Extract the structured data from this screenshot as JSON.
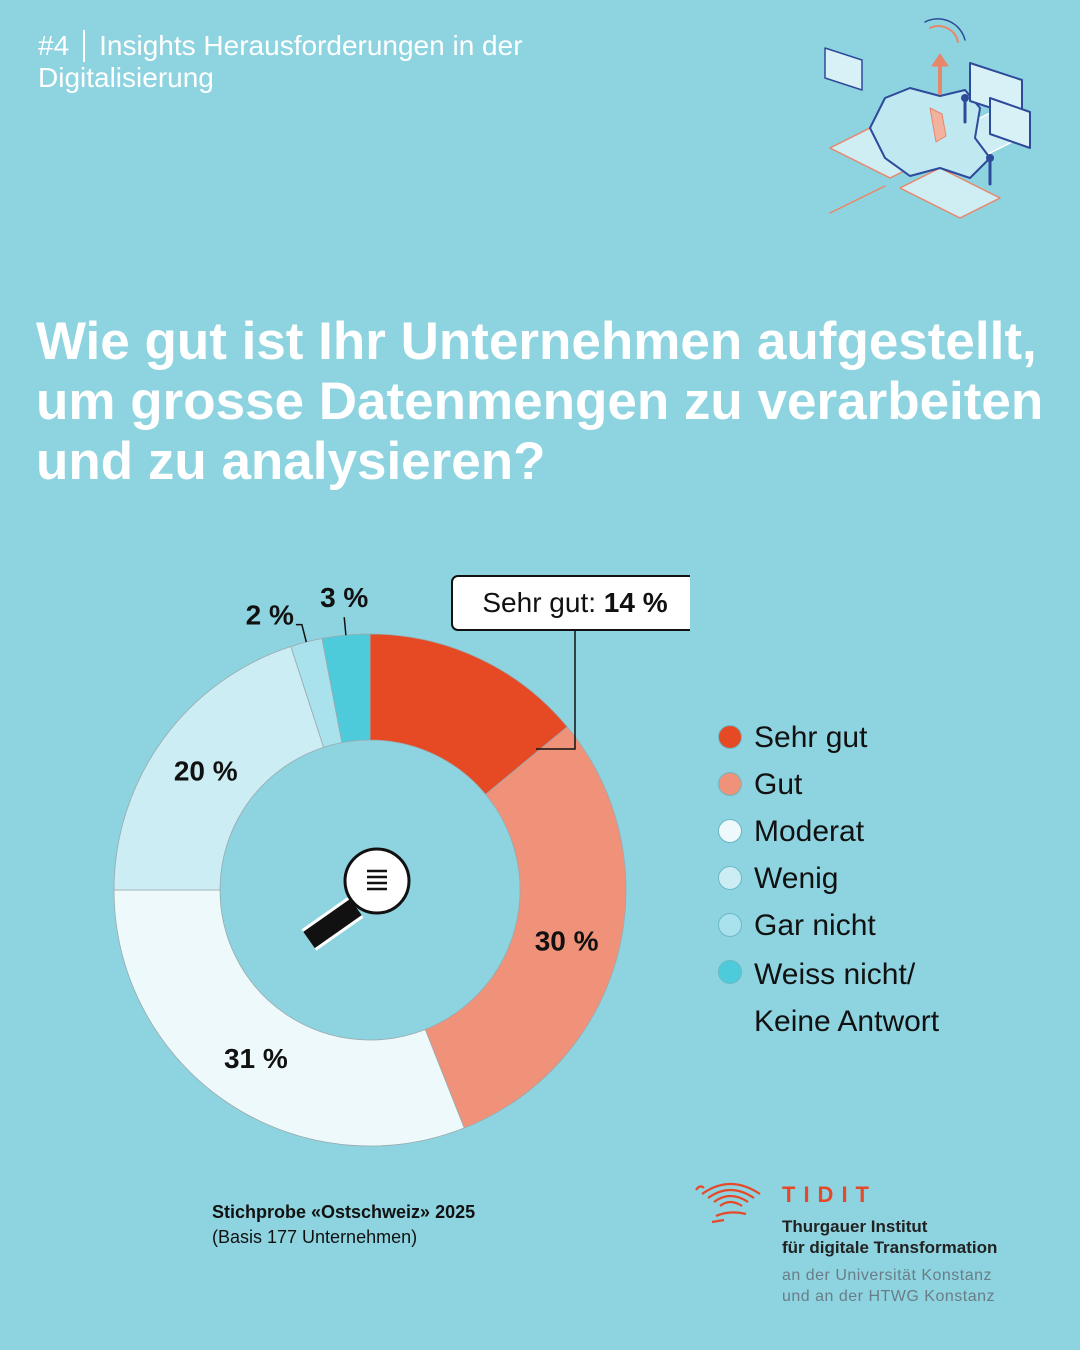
{
  "header": {
    "number": "#4",
    "line1": "Insights Herausforderungen in der",
    "line2": "Digitalisierung"
  },
  "question": "Wie gut ist Ihr Unternehmen aufgestellt, um grosse Datenmengen zu verarbeiten und zu analysieren?",
  "chart_data": {
    "type": "pie",
    "categories": [
      "Sehr gut",
      "Gut",
      "Moderat",
      "Wenig",
      "Gar nicht",
      "Weiss nicht/ Keine Antwort"
    ],
    "values": [
      14,
      30,
      31,
      20,
      2,
      3
    ],
    "value_labels": [
      "",
      "30 %",
      "31 %",
      "20 %",
      "2 %",
      "3 %"
    ],
    "colors": [
      "#e64a25",
      "#f09279",
      "#eef9fb",
      "#ccedf3",
      "#a9e2ec",
      "#4ecbdb"
    ],
    "callout": {
      "prefix": "Sehr gut: ",
      "value": "14 %"
    },
    "legend_position": "right"
  },
  "legend": [
    {
      "label": "Sehr gut",
      "color": "#e64a25"
    },
    {
      "label": "Gut",
      "color": "#f09279"
    },
    {
      "label": "Moderat",
      "color": "#eef9fb"
    },
    {
      "label": "Wenig",
      "color": "#ccedf3"
    },
    {
      "label": "Gar nicht",
      "color": "#a9e2ec"
    },
    {
      "label": "Weiss nicht/",
      "label2": "Keine Antwort",
      "color": "#4ecbdb"
    }
  ],
  "sample": {
    "title": "Stichprobe «Ostschweiz» 2025",
    "base": "(Basis 177 Unternehmen)"
  },
  "logo": {
    "wordmark": "TIDIT",
    "name_line1": "Thurgauer Institut",
    "name_line2": "für digitale Transformation",
    "sub_line1": "an der Universität Konstanz",
    "sub_line2": "und an der HTWG Konstanz"
  },
  "icons": {
    "center": "magnifier-icon",
    "illustration": "isometric-map-illustration"
  }
}
